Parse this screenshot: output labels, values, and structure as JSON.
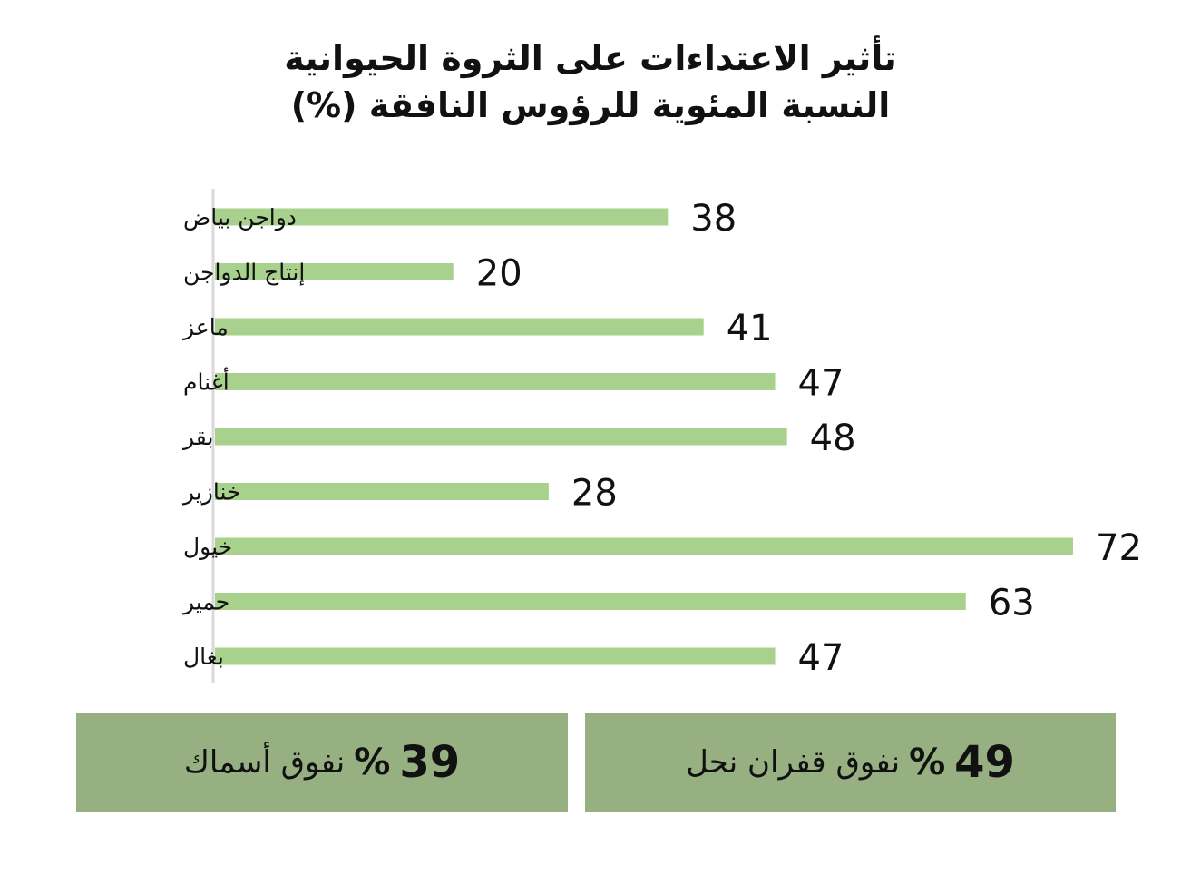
{
  "chart_data": {
    "type": "bar",
    "orientation": "horizontal",
    "title": "تأثير الاعتداءات على الثروة الحيوانية",
    "subtitle": "النسبة المئوية للرؤوس النافقة (%)",
    "categories": [
      "دواجن بياض",
      "إنتاج الدواجن",
      "ماعز",
      "أغنام",
      "بقر",
      "خنازير",
      "خيول",
      "حمير",
      "بغال"
    ],
    "values": [
      38,
      20,
      41,
      47,
      48,
      28,
      72,
      63,
      47
    ],
    "xlim": [
      0,
      72
    ],
    "grid": false,
    "bar_color": "#a9d18e",
    "axis_color": "#d9d9d9"
  },
  "callouts": [
    {
      "value": "39",
      "percent_sign": "%",
      "label": "نفوق أسماك"
    },
    {
      "value": "49",
      "percent_sign": "%",
      "label": "نفوق قفران نحل"
    }
  ],
  "colors": {
    "callout_bg": "#97b082"
  }
}
